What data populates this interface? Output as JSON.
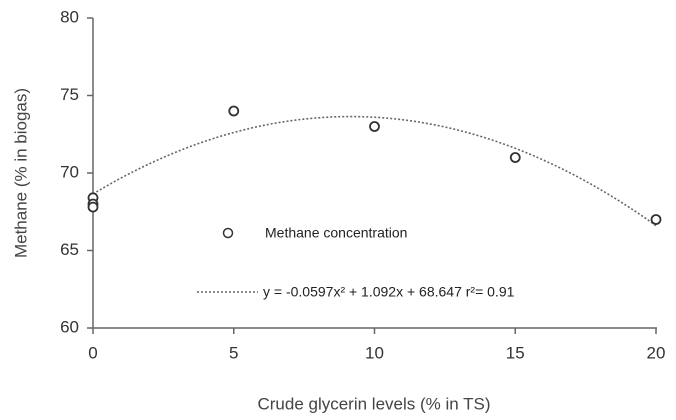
{
  "chart_data": {
    "type": "scatter",
    "x_label": "Crude glycerin levels (% in TS)",
    "y_label": "Methane (% in biogas)",
    "x": [
      0,
      0,
      0,
      5,
      10,
      15,
      20
    ],
    "series": [
      {
        "name": "Methane concentration",
        "color": "#333333",
        "values": [
          68.4,
          68,
          67.8,
          74,
          73,
          71,
          67
        ]
      }
    ],
    "trendline": {
      "label": "y = -0.0597x² + 1.092x + 68.647 r²= 0.91",
      "coefficients": [
        -0.0597,
        1.092,
        68.647
      ],
      "color": "#666666"
    },
    "xlim": [
      0,
      20
    ],
    "xticks": [
      0,
      5,
      10,
      15,
      20
    ],
    "ylim": [
      60,
      80
    ],
    "yticks": [
      60,
      65,
      70,
      75,
      80
    ]
  }
}
